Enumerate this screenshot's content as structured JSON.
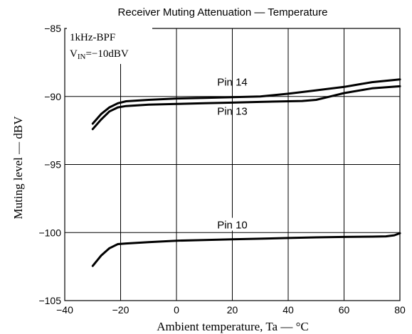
{
  "chart_data": {
    "type": "line",
    "title": "Receiver Muting Attenuation — Temperature",
    "xlabel": "Ambient temperature, Ta — °C",
    "ylabel": "Muting level — dBV",
    "xlim": [
      -40,
      80
    ],
    "ylim": [
      -105,
      -85
    ],
    "xticks": [
      -40,
      -20,
      0,
      20,
      40,
      60,
      80
    ],
    "yticks": [
      -85,
      -90,
      -95,
      -100,
      -105
    ],
    "xtick_labels": [
      "−40",
      "−20",
      "0",
      "20",
      "40",
      "60",
      "80"
    ],
    "ytick_labels": [
      "−85",
      "−90",
      "−95",
      "−100",
      "−105"
    ],
    "grid": true,
    "annotations": {
      "line1": "1kHz-BPF",
      "line2_main": "V",
      "line2_sub": "IN",
      "line2_rest": "=−10dBV"
    },
    "series": [
      {
        "name": "Pin 14",
        "x": [
          -30,
          -27,
          -24,
          -21,
          -18,
          -10,
          0,
          10,
          20,
          30,
          40,
          50,
          60,
          70,
          80
        ],
        "y": [
          -92.0,
          -91.3,
          -90.8,
          -90.5,
          -90.35,
          -90.25,
          -90.15,
          -90.1,
          -90.05,
          -90.0,
          -89.8,
          -89.55,
          -89.3,
          -88.95,
          -88.75
        ]
      },
      {
        "name": "Pin 13",
        "x": [
          -30,
          -27,
          -24,
          -21,
          -18,
          -10,
          0,
          10,
          20,
          30,
          40,
          45,
          50,
          55,
          60,
          70,
          80
        ],
        "y": [
          -92.4,
          -91.7,
          -91.1,
          -90.8,
          -90.7,
          -90.6,
          -90.55,
          -90.5,
          -90.45,
          -90.4,
          -90.35,
          -90.33,
          -90.25,
          -90.0,
          -89.75,
          -89.4,
          -89.25
        ]
      },
      {
        "name": "Pin 10",
        "x": [
          -30,
          -27,
          -24,
          -21,
          -18,
          -10,
          0,
          10,
          20,
          30,
          40,
          50,
          60,
          70,
          75,
          78,
          80
        ],
        "y": [
          -102.45,
          -101.7,
          -101.15,
          -100.85,
          -100.8,
          -100.7,
          -100.6,
          -100.55,
          -100.5,
          -100.45,
          -100.4,
          -100.35,
          -100.32,
          -100.3,
          -100.28,
          -100.2,
          -100.05
        ]
      }
    ]
  }
}
